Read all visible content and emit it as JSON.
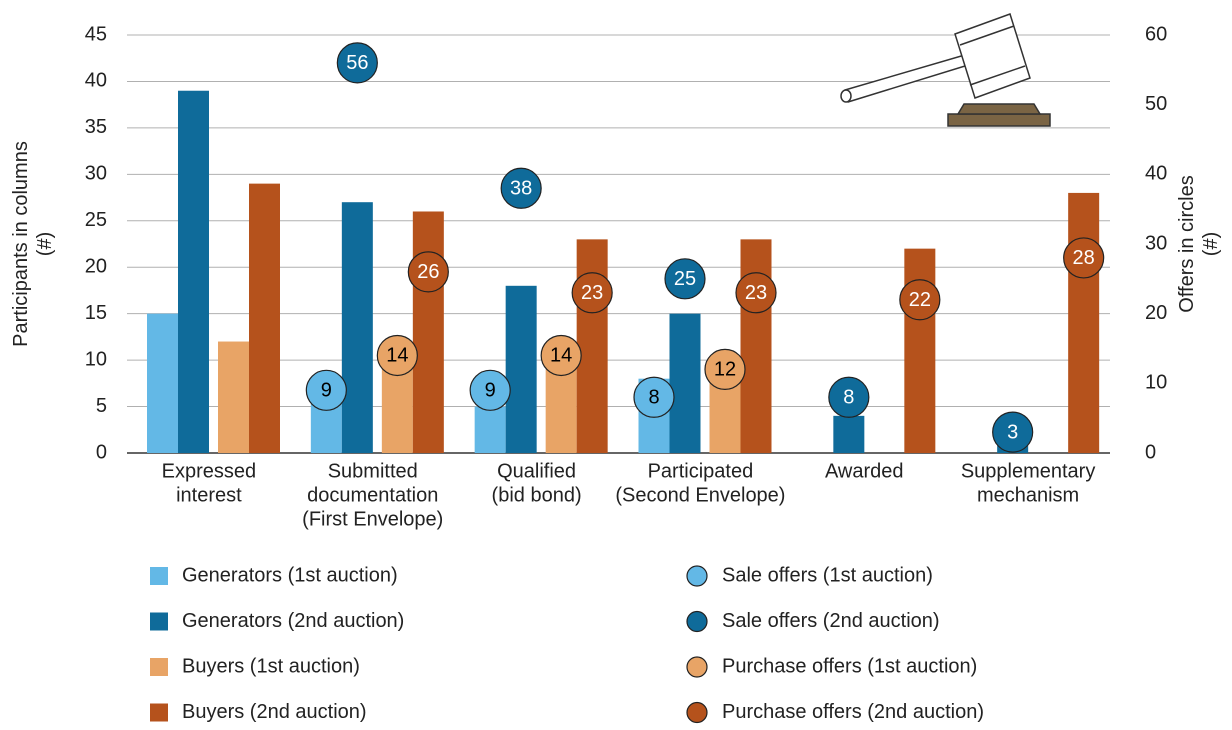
{
  "chart_data": {
    "type": "bar",
    "categories": [
      [
        "Expressed",
        "interest"
      ],
      [
        "Submitted",
        "documentation",
        "(First Envelope)"
      ],
      [
        "Qualified",
        "(bid bond)"
      ],
      [
        "Participated",
        "(Second Envelope)"
      ],
      [
        "Awarded"
      ],
      [
        "Supplementary",
        "mechanism"
      ]
    ],
    "ylabel": [
      "Participants in columns",
      "(#)"
    ],
    "y2label": [
      "Offers in circles",
      "(#)"
    ],
    "ylim": [
      0,
      45
    ],
    "yticks": [
      0,
      5,
      10,
      15,
      20,
      25,
      30,
      35,
      40,
      45
    ],
    "y2lim": [
      0,
      60
    ],
    "y2ticks": [
      0,
      10,
      20,
      30,
      40,
      50,
      60
    ],
    "grid": true,
    "series": [
      {
        "name": "Generators (1st auction)",
        "color": "#63b8e6",
        "values": [
          15,
          6,
          5,
          8,
          null,
          null
        ]
      },
      {
        "name": "Generators (2nd auction)",
        "color": "#0f6b9a",
        "values": [
          39,
          27,
          18,
          15,
          4,
          2
        ]
      },
      {
        "name": "Buyers (1st auction)",
        "color": "#e8a466",
        "values": [
          12,
          10,
          11,
          9,
          null,
          null
        ]
      },
      {
        "name": "Buyers (2nd auction)",
        "color": "#b5521c",
        "values": [
          29,
          26,
          23,
          23,
          22,
          28
        ]
      },
      {
        "name": "Sale offers (1st auction)",
        "color": "#63b8e6",
        "text_color": "#000000",
        "axis": "y2",
        "marker": "circle",
        "values": [
          null,
          9,
          9,
          8,
          null,
          null
        ]
      },
      {
        "name": "Sale offers (2nd auction)",
        "color": "#0f6b9a",
        "text_color": "#ffffff",
        "axis": "y2",
        "marker": "circle",
        "values": [
          null,
          56,
          38,
          25,
          8,
          3
        ]
      },
      {
        "name": "Purchase offers (1st auction)",
        "color": "#e8a466",
        "text_color": "#000000",
        "axis": "y2",
        "marker": "circle",
        "values": [
          null,
          14,
          14,
          12,
          null,
          null
        ]
      },
      {
        "name": "Purchase offers (2nd auction)",
        "color": "#b5521c",
        "text_color": "#ffffff",
        "axis": "y2",
        "marker": "circle",
        "values": [
          null,
          26,
          23,
          23,
          22,
          28
        ]
      }
    ]
  }
}
